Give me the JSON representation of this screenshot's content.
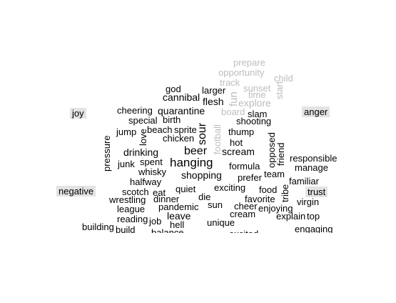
{
  "labels": [
    "joy",
    "anger",
    "negative",
    "trust"
  ],
  "colors": {
    "word": "#000000",
    "faded_word": "#bdbdbd",
    "label_bg": "#e3e3e3",
    "background": "#ffffff"
  },
  "words": [
    {
      "text": "prepare",
      "faded": true
    },
    {
      "text": "opportunity",
      "faded": true
    },
    {
      "text": "child",
      "faded": true
    },
    {
      "text": "track",
      "faded": true
    },
    {
      "text": "sunset",
      "faded": true
    },
    {
      "text": "start",
      "faded": true
    },
    {
      "text": "god",
      "faded": false
    },
    {
      "text": "larger",
      "faded": false
    },
    {
      "text": "time",
      "faded": true
    },
    {
      "text": "cannibal",
      "faded": false
    },
    {
      "text": "fun",
      "faded": true
    },
    {
      "text": "flesh",
      "faded": false
    },
    {
      "text": "explore",
      "faded": true
    },
    {
      "text": "board",
      "faded": true
    },
    {
      "text": "cheering",
      "faded": false
    },
    {
      "text": "quarantine",
      "faded": false
    },
    {
      "text": "slam",
      "faded": false
    },
    {
      "text": "special",
      "faded": false
    },
    {
      "text": "birth",
      "faded": false
    },
    {
      "text": "shooting",
      "faded": false
    },
    {
      "text": "jump",
      "faded": false
    },
    {
      "text": "beach",
      "faded": false
    },
    {
      "text": "sprite",
      "faded": false
    },
    {
      "text": "love",
      "faded": false
    },
    {
      "text": "sour",
      "faded": false
    },
    {
      "text": "football",
      "faded": true
    },
    {
      "text": "thump",
      "faded": false
    },
    {
      "text": "chicken",
      "faded": false
    },
    {
      "text": "hot",
      "faded": false
    },
    {
      "text": "pressure",
      "faded": false
    },
    {
      "text": "opposed",
      "faded": false
    },
    {
      "text": "friend",
      "faded": false
    },
    {
      "text": "drinking",
      "faded": false
    },
    {
      "text": "beer",
      "faded": false
    },
    {
      "text": "scream",
      "faded": false
    },
    {
      "text": "responsible",
      "faded": false
    },
    {
      "text": "junk",
      "faded": false
    },
    {
      "text": "spent",
      "faded": false
    },
    {
      "text": "hanging",
      "faded": false
    },
    {
      "text": "formula",
      "faded": false
    },
    {
      "text": "manage",
      "faded": false
    },
    {
      "text": "whisky",
      "faded": false
    },
    {
      "text": "shopping",
      "faded": false
    },
    {
      "text": "team",
      "faded": false
    },
    {
      "text": "prefer",
      "faded": false
    },
    {
      "text": "halfway",
      "faded": false
    },
    {
      "text": "familiar",
      "faded": false
    },
    {
      "text": "quiet",
      "faded": false
    },
    {
      "text": "exciting",
      "faded": false
    },
    {
      "text": "scotch",
      "faded": false
    },
    {
      "text": "eat",
      "faded": false
    },
    {
      "text": "food",
      "faded": false
    },
    {
      "text": "tribe",
      "faded": false
    },
    {
      "text": "die",
      "faded": false
    },
    {
      "text": "wrestling",
      "faded": false
    },
    {
      "text": "dinner",
      "faded": false
    },
    {
      "text": "favorite",
      "faded": false
    },
    {
      "text": "virgin",
      "faded": false
    },
    {
      "text": "sun",
      "faded": false
    },
    {
      "text": "cheer",
      "faded": false
    },
    {
      "text": "enjoying",
      "faded": false
    },
    {
      "text": "league",
      "faded": false
    },
    {
      "text": "pandemic",
      "faded": false
    },
    {
      "text": "cream",
      "faded": false
    },
    {
      "text": "leave",
      "faded": false
    },
    {
      "text": "explain",
      "faded": false
    },
    {
      "text": "top",
      "faded": false
    },
    {
      "text": "reading",
      "faded": false
    },
    {
      "text": "job",
      "faded": false
    },
    {
      "text": "unique",
      "faded": false
    },
    {
      "text": "hell",
      "faded": false
    },
    {
      "text": "building",
      "faded": false
    },
    {
      "text": "build",
      "faded": false
    },
    {
      "text": "engaging",
      "faded": false
    },
    {
      "text": "balance",
      "faded": false
    },
    {
      "text": "excited",
      "faded": false
    }
  ]
}
